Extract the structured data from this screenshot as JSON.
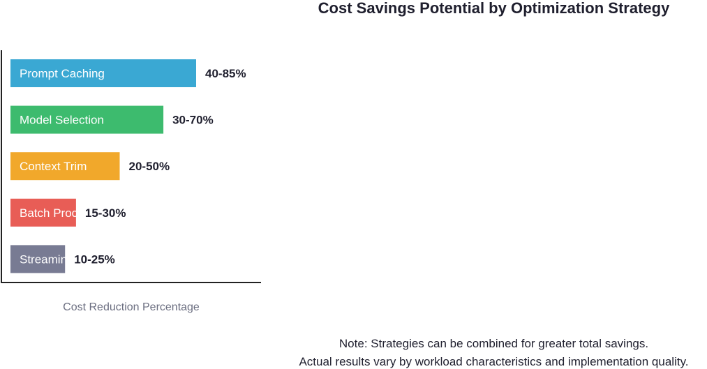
{
  "chart_data": {
    "type": "bar",
    "orientation": "horizontal",
    "title": "Cost Savings Potential by Optimization Strategy",
    "xlabel": "Cost Reduction Percentage",
    "ylabel": "",
    "categories": [
      "Prompt Caching",
      "Model Selection",
      "Context Trim",
      "Batch Process",
      "Streaming"
    ],
    "values": [
      85,
      70,
      50,
      30,
      25
    ],
    "value_labels": [
      "40-85%",
      "30-70%",
      "20-50%",
      "15-30%",
      "10-25%"
    ],
    "bar_colors": [
      "#3aa8d3",
      "#3dbb6e",
      "#f1a82b",
      "#e85d56",
      "#787b93"
    ],
    "xlim": [
      0,
      90
    ],
    "grid": false,
    "legend": "none"
  },
  "note": {
    "line1": "Note: Strategies can be combined for greater total savings.",
    "line2": "Actual results vary by workload characteristics and implementation quality."
  }
}
